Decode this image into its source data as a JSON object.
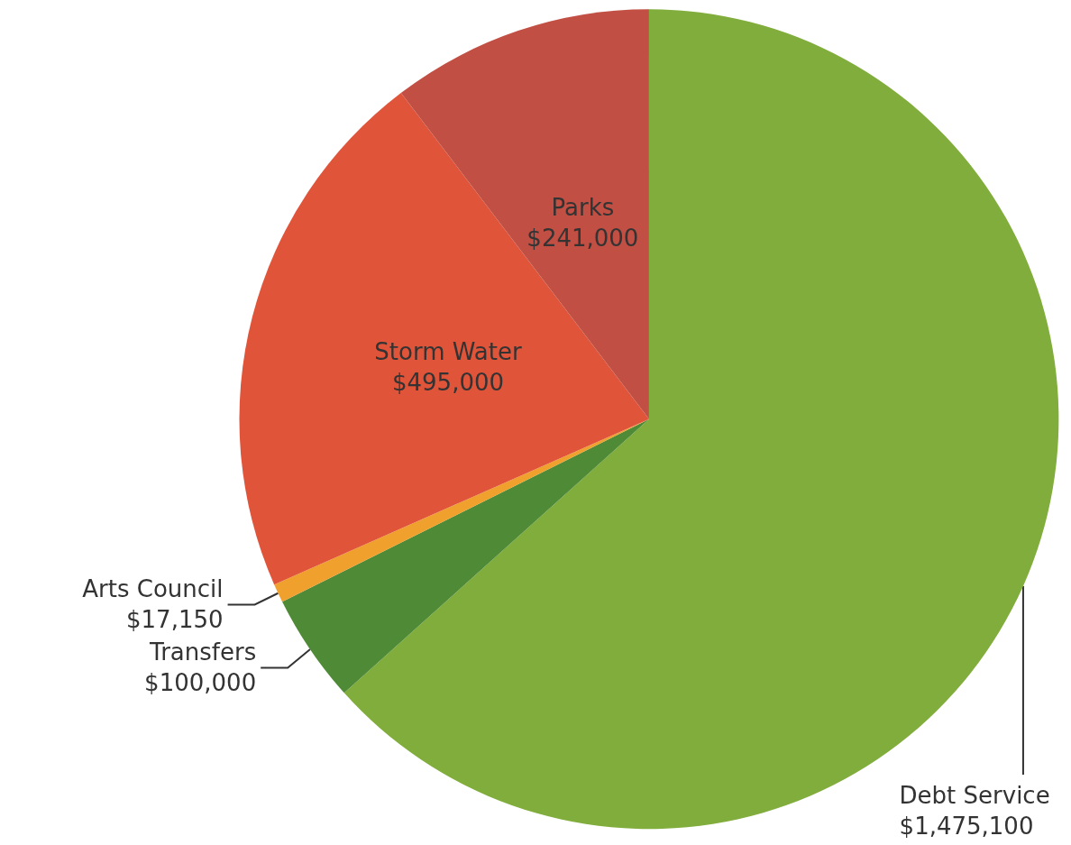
{
  "chart_data": {
    "type": "pie",
    "categories": [
      "Debt Service",
      "Transfers",
      "Arts Council",
      "Storm Water",
      "Parks"
    ],
    "values": [
      1475100,
      100000,
      17150,
      495000,
      241000
    ],
    "value_labels": [
      "$1,475,100",
      "$100,000",
      "$17,150",
      "$495,000",
      "$241,000"
    ],
    "colors": [
      "#80ad3c",
      "#4f8a37",
      "#f0a02c",
      "#e0543a",
      "#c24f43"
    ],
    "legend": false
  }
}
